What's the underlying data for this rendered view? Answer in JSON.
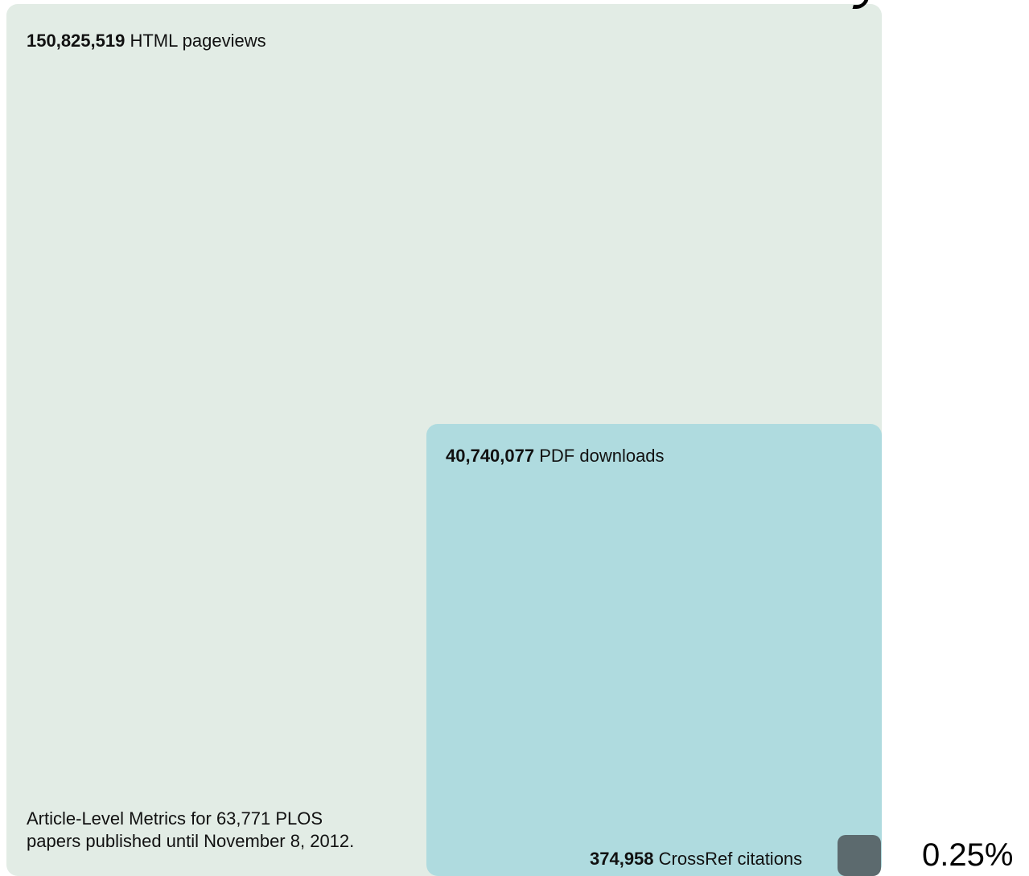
{
  "chart_data": {
    "type": "treemap",
    "colors": {
      "html": "#e2ece5",
      "pdf": "#afdbdf",
      "cite": "#5c6a6e"
    },
    "items": [
      {
        "value": 150825519,
        "value_text": "150,825,519",
        "label": "HTML pageviews"
      },
      {
        "value": 40740077,
        "value_text": "40,740,077",
        "label": "PDF downloads"
      },
      {
        "value": 374958,
        "value_text": "374,958",
        "label": "CrossRef citations"
      }
    ],
    "note_line1": "Article-Level Metrics for 63,771 PLOS",
    "note_line2": "papers published until November 8, 2012.",
    "annotation": "0.25%"
  }
}
